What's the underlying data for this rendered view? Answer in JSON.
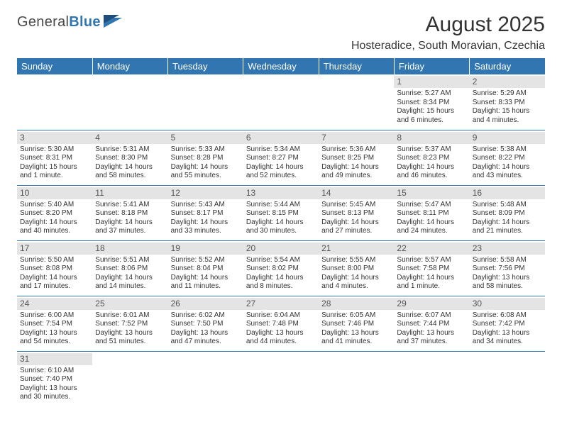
{
  "brand": {
    "part1": "General",
    "part2": "Blue"
  },
  "header": {
    "title": "August 2025",
    "location": "Hosteradice, South Moravian, Czechia"
  },
  "colors": {
    "accent": "#3276b1",
    "dayShade": "#e4e4e4"
  },
  "dayNames": [
    "Sunday",
    "Monday",
    "Tuesday",
    "Wednesday",
    "Thursday",
    "Friday",
    "Saturday"
  ],
  "weeks": [
    [
      {
        "empty": true
      },
      {
        "empty": true
      },
      {
        "empty": true
      },
      {
        "empty": true
      },
      {
        "empty": true
      },
      {
        "num": "1",
        "sunrise": "Sunrise: 5:27 AM",
        "sunset": "Sunset: 8:34 PM",
        "daylight": "Daylight: 15 hours and 6 minutes."
      },
      {
        "num": "2",
        "sunrise": "Sunrise: 5:29 AM",
        "sunset": "Sunset: 8:33 PM",
        "daylight": "Daylight: 15 hours and 4 minutes."
      }
    ],
    [
      {
        "num": "3",
        "sunrise": "Sunrise: 5:30 AM",
        "sunset": "Sunset: 8:31 PM",
        "daylight": "Daylight: 15 hours and 1 minute."
      },
      {
        "num": "4",
        "sunrise": "Sunrise: 5:31 AM",
        "sunset": "Sunset: 8:30 PM",
        "daylight": "Daylight: 14 hours and 58 minutes."
      },
      {
        "num": "5",
        "sunrise": "Sunrise: 5:33 AM",
        "sunset": "Sunset: 8:28 PM",
        "daylight": "Daylight: 14 hours and 55 minutes."
      },
      {
        "num": "6",
        "sunrise": "Sunrise: 5:34 AM",
        "sunset": "Sunset: 8:27 PM",
        "daylight": "Daylight: 14 hours and 52 minutes."
      },
      {
        "num": "7",
        "sunrise": "Sunrise: 5:36 AM",
        "sunset": "Sunset: 8:25 PM",
        "daylight": "Daylight: 14 hours and 49 minutes."
      },
      {
        "num": "8",
        "sunrise": "Sunrise: 5:37 AM",
        "sunset": "Sunset: 8:23 PM",
        "daylight": "Daylight: 14 hours and 46 minutes."
      },
      {
        "num": "9",
        "sunrise": "Sunrise: 5:38 AM",
        "sunset": "Sunset: 8:22 PM",
        "daylight": "Daylight: 14 hours and 43 minutes."
      }
    ],
    [
      {
        "num": "10",
        "sunrise": "Sunrise: 5:40 AM",
        "sunset": "Sunset: 8:20 PM",
        "daylight": "Daylight: 14 hours and 40 minutes."
      },
      {
        "num": "11",
        "sunrise": "Sunrise: 5:41 AM",
        "sunset": "Sunset: 8:18 PM",
        "daylight": "Daylight: 14 hours and 37 minutes."
      },
      {
        "num": "12",
        "sunrise": "Sunrise: 5:43 AM",
        "sunset": "Sunset: 8:17 PM",
        "daylight": "Daylight: 14 hours and 33 minutes."
      },
      {
        "num": "13",
        "sunrise": "Sunrise: 5:44 AM",
        "sunset": "Sunset: 8:15 PM",
        "daylight": "Daylight: 14 hours and 30 minutes."
      },
      {
        "num": "14",
        "sunrise": "Sunrise: 5:45 AM",
        "sunset": "Sunset: 8:13 PM",
        "daylight": "Daylight: 14 hours and 27 minutes."
      },
      {
        "num": "15",
        "sunrise": "Sunrise: 5:47 AM",
        "sunset": "Sunset: 8:11 PM",
        "daylight": "Daylight: 14 hours and 24 minutes."
      },
      {
        "num": "16",
        "sunrise": "Sunrise: 5:48 AM",
        "sunset": "Sunset: 8:09 PM",
        "daylight": "Daylight: 14 hours and 21 minutes."
      }
    ],
    [
      {
        "num": "17",
        "sunrise": "Sunrise: 5:50 AM",
        "sunset": "Sunset: 8:08 PM",
        "daylight": "Daylight: 14 hours and 17 minutes."
      },
      {
        "num": "18",
        "sunrise": "Sunrise: 5:51 AM",
        "sunset": "Sunset: 8:06 PM",
        "daylight": "Daylight: 14 hours and 14 minutes."
      },
      {
        "num": "19",
        "sunrise": "Sunrise: 5:52 AM",
        "sunset": "Sunset: 8:04 PM",
        "daylight": "Daylight: 14 hours and 11 minutes."
      },
      {
        "num": "20",
        "sunrise": "Sunrise: 5:54 AM",
        "sunset": "Sunset: 8:02 PM",
        "daylight": "Daylight: 14 hours and 8 minutes."
      },
      {
        "num": "21",
        "sunrise": "Sunrise: 5:55 AM",
        "sunset": "Sunset: 8:00 PM",
        "daylight": "Daylight: 14 hours and 4 minutes."
      },
      {
        "num": "22",
        "sunrise": "Sunrise: 5:57 AM",
        "sunset": "Sunset: 7:58 PM",
        "daylight": "Daylight: 14 hours and 1 minute."
      },
      {
        "num": "23",
        "sunrise": "Sunrise: 5:58 AM",
        "sunset": "Sunset: 7:56 PM",
        "daylight": "Daylight: 13 hours and 58 minutes."
      }
    ],
    [
      {
        "num": "24",
        "sunrise": "Sunrise: 6:00 AM",
        "sunset": "Sunset: 7:54 PM",
        "daylight": "Daylight: 13 hours and 54 minutes."
      },
      {
        "num": "25",
        "sunrise": "Sunrise: 6:01 AM",
        "sunset": "Sunset: 7:52 PM",
        "daylight": "Daylight: 13 hours and 51 minutes."
      },
      {
        "num": "26",
        "sunrise": "Sunrise: 6:02 AM",
        "sunset": "Sunset: 7:50 PM",
        "daylight": "Daylight: 13 hours and 47 minutes."
      },
      {
        "num": "27",
        "sunrise": "Sunrise: 6:04 AM",
        "sunset": "Sunset: 7:48 PM",
        "daylight": "Daylight: 13 hours and 44 minutes."
      },
      {
        "num": "28",
        "sunrise": "Sunrise: 6:05 AM",
        "sunset": "Sunset: 7:46 PM",
        "daylight": "Daylight: 13 hours and 41 minutes."
      },
      {
        "num": "29",
        "sunrise": "Sunrise: 6:07 AM",
        "sunset": "Sunset: 7:44 PM",
        "daylight": "Daylight: 13 hours and 37 minutes."
      },
      {
        "num": "30",
        "sunrise": "Sunrise: 6:08 AM",
        "sunset": "Sunset: 7:42 PM",
        "daylight": "Daylight: 13 hours and 34 minutes."
      }
    ],
    [
      {
        "num": "31",
        "sunrise": "Sunrise: 6:10 AM",
        "sunset": "Sunset: 7:40 PM",
        "daylight": "Daylight: 13 hours and 30 minutes."
      },
      {
        "empty": true
      },
      {
        "empty": true
      },
      {
        "empty": true
      },
      {
        "empty": true
      },
      {
        "empty": true
      },
      {
        "empty": true
      }
    ]
  ]
}
